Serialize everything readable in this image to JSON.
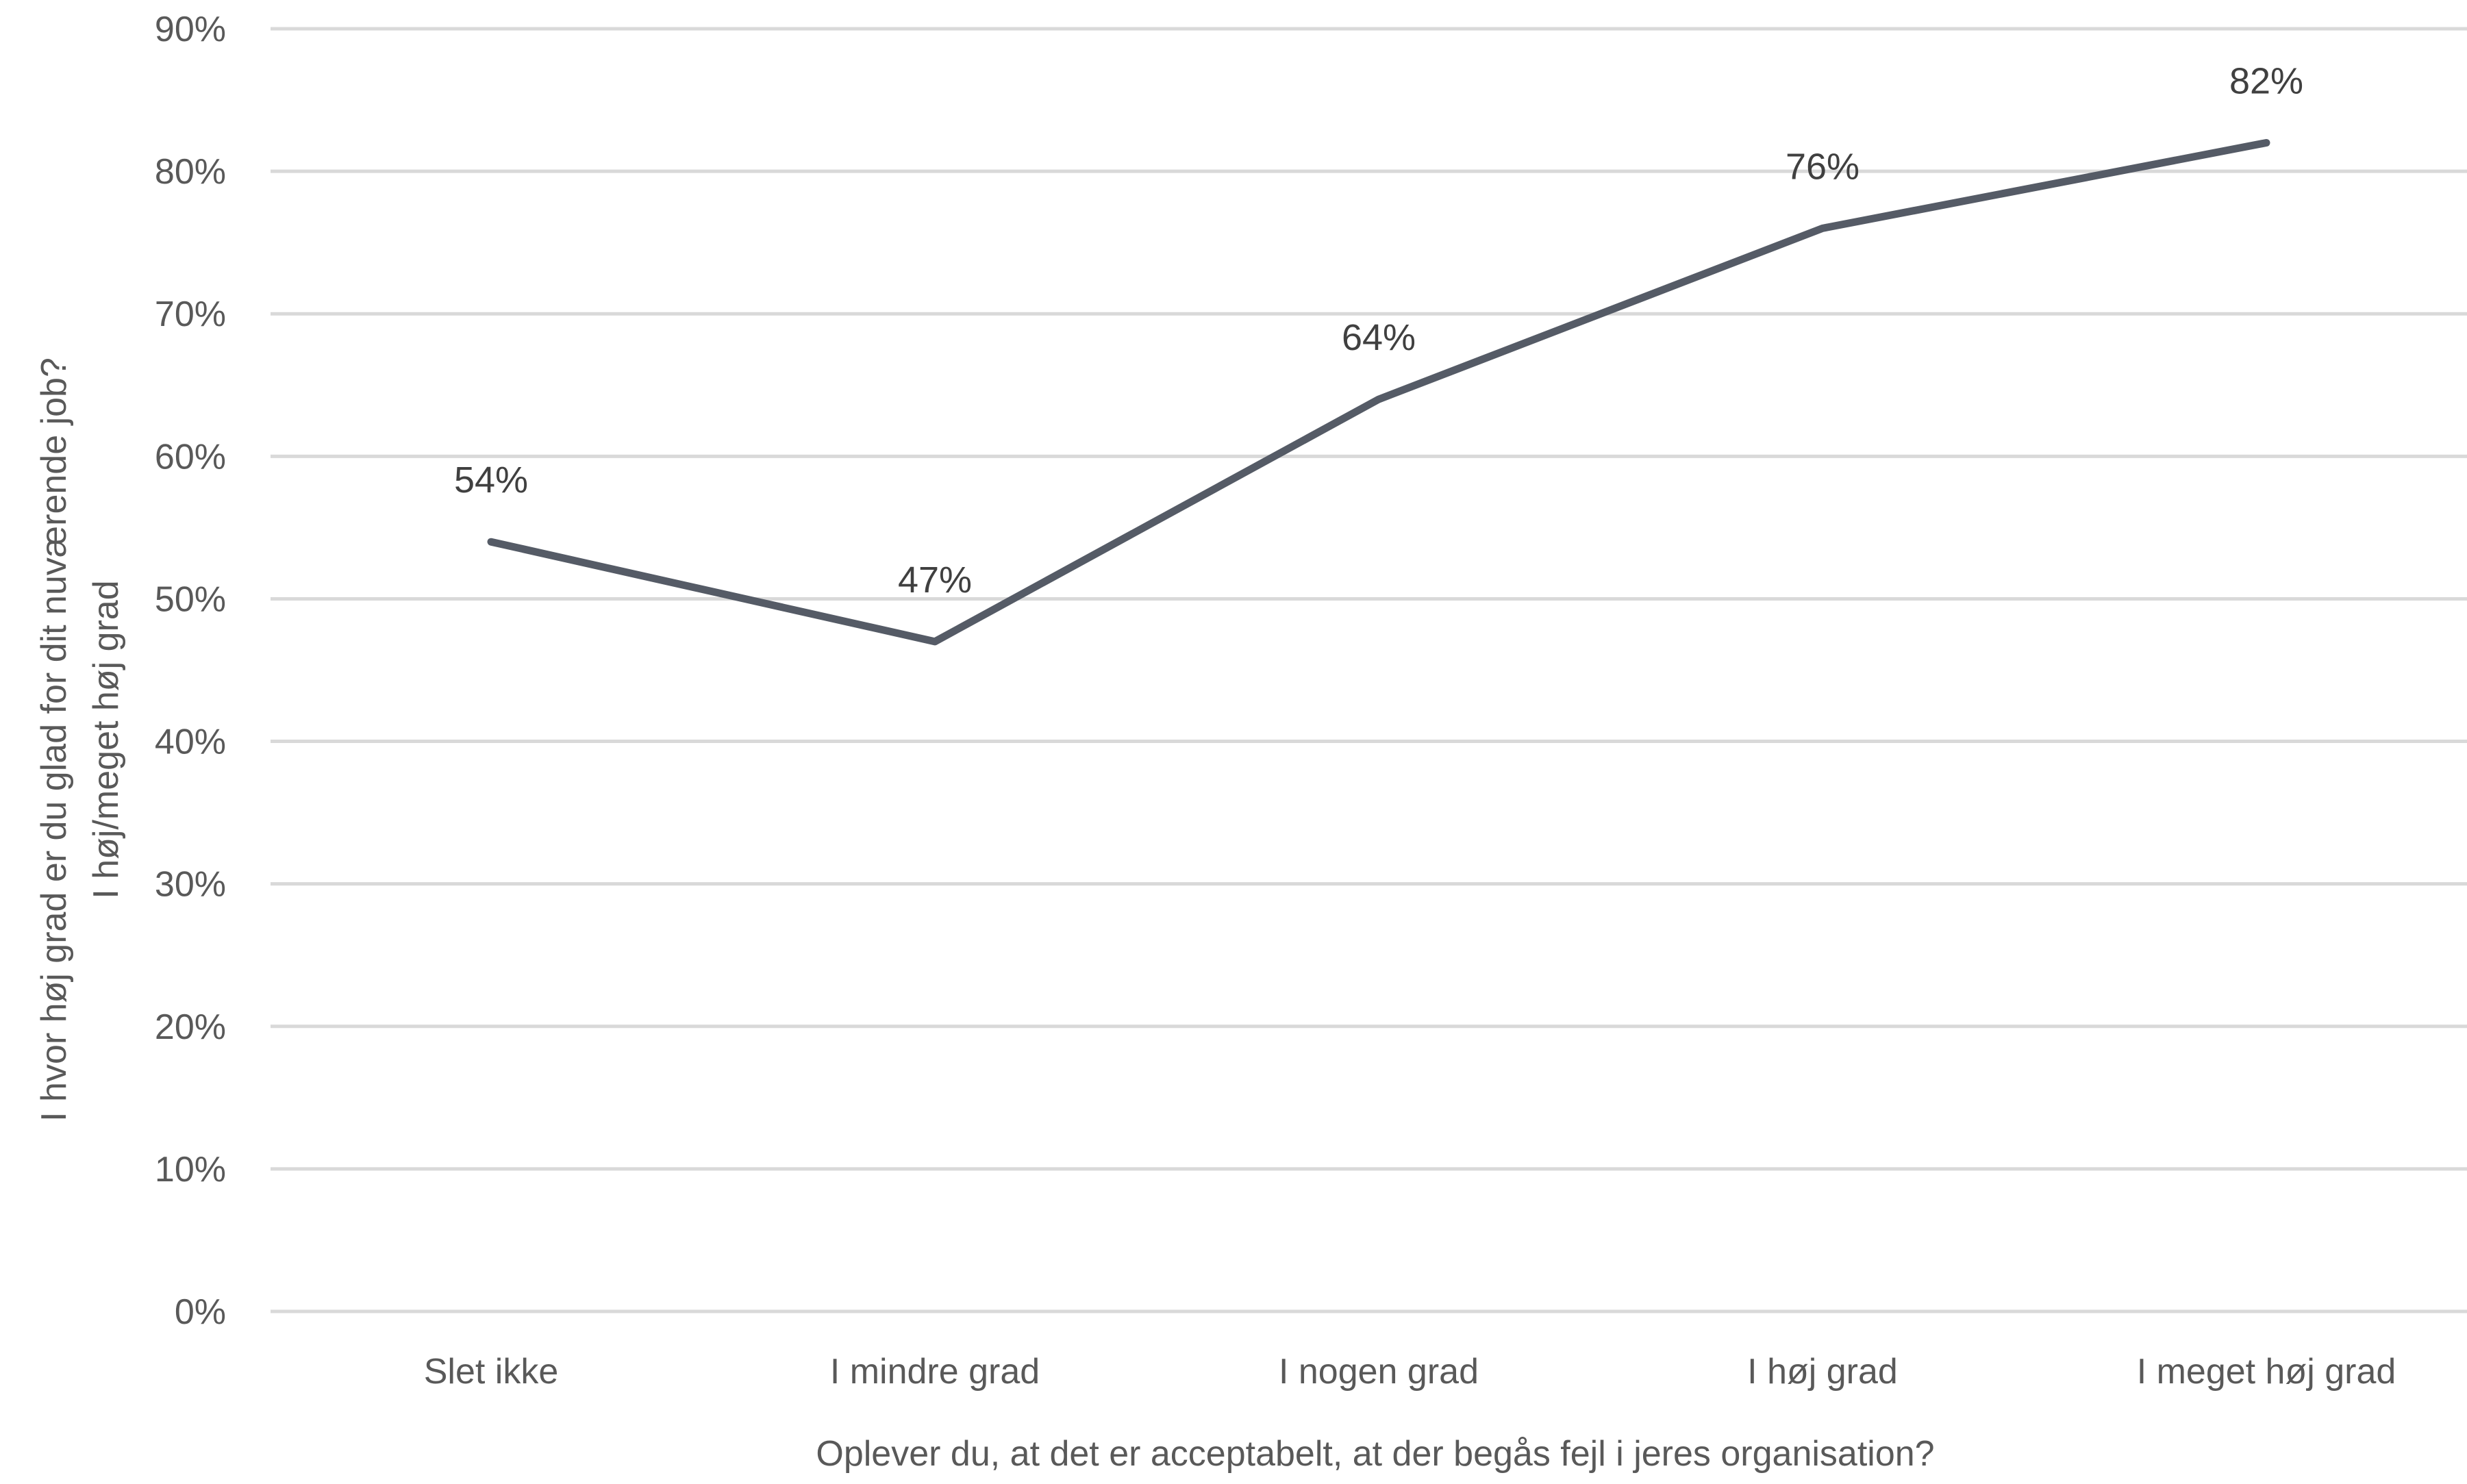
{
  "chart_data": {
    "type": "line",
    "categories": [
      "Slet ikke",
      "I mindre grad",
      "I nogen grad",
      "I høj grad",
      "I meget høj grad"
    ],
    "series": [
      {
        "values": [
          54,
          47,
          64,
          76,
          82
        ],
        "value_labels": [
          "54%",
          "47%",
          "64%",
          "76%",
          "82%"
        ],
        "color": "#555b66"
      }
    ],
    "ylim": [
      0,
      90
    ],
    "yticks": [
      0,
      10,
      20,
      30,
      40,
      50,
      60,
      70,
      80,
      90
    ],
    "ytick_labels": [
      "0%",
      "10%",
      "20%",
      "30%",
      "40%",
      "50%",
      "60%",
      "70%",
      "80%",
      "90%"
    ],
    "xlabel": "Oplever du, at det er acceptabelt, at der begås fejl i jeres organisation?",
    "ylabel_lines": [
      "I hvor høj grad er du glad for dit nuværende job?",
      "I høj/meget høj grad"
    ],
    "grid": true,
    "legend": "none"
  }
}
